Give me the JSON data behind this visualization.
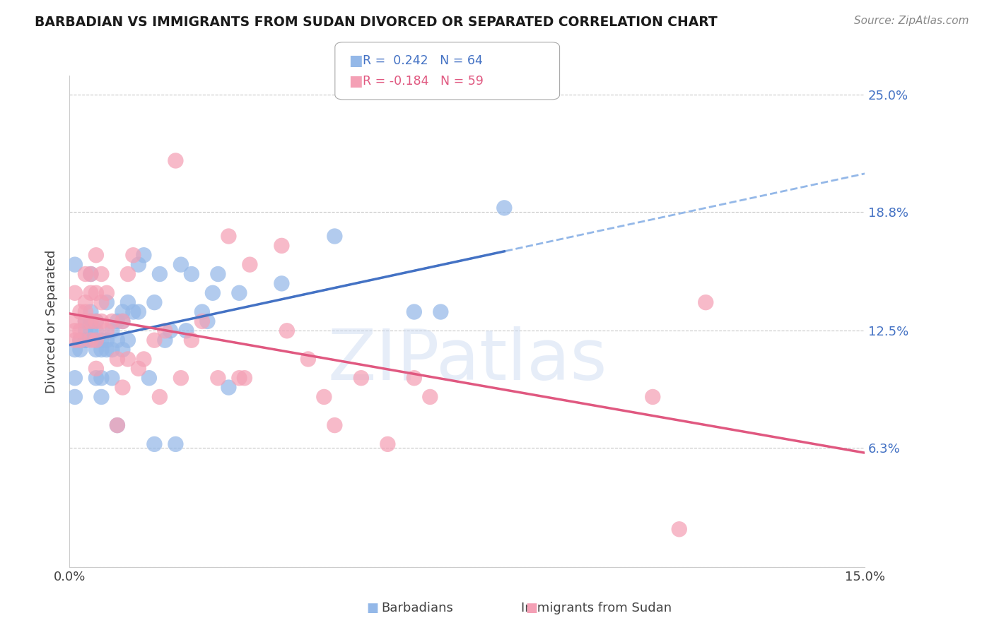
{
  "title": "BARBADIAN VS IMMIGRANTS FROM SUDAN DIVORCED OR SEPARATED CORRELATION CHART",
  "source": "Source: ZipAtlas.com",
  "ylabel": "Divorced or Separated",
  "xlim": [
    0.0,
    0.15
  ],
  "ylim": [
    0.0,
    0.26
  ],
  "ytick_values": [
    0.0,
    0.063,
    0.125,
    0.188,
    0.25
  ],
  "ytick_labels": [
    "",
    "6.3%",
    "12.5%",
    "18.8%",
    "25.0%"
  ],
  "grid_color": "#c8c8c8",
  "background_color": "#ffffff",
  "barbadian_color": "#94b8e8",
  "sudan_color": "#f4a0b5",
  "barbadian_R": 0.242,
  "barbadian_N": 64,
  "sudan_R": -0.184,
  "sudan_N": 59,
  "trend_blue_solid_color": "#4472c4",
  "trend_blue_dash_color": "#94b8e8",
  "trend_pink_color": "#e05880",
  "watermark": "ZIPatlas",
  "barbadian_x": [
    0.001,
    0.001,
    0.001,
    0.001,
    0.002,
    0.002,
    0.003,
    0.003,
    0.003,
    0.003,
    0.003,
    0.004,
    0.004,
    0.004,
    0.004,
    0.004,
    0.005,
    0.005,
    0.005,
    0.005,
    0.005,
    0.006,
    0.006,
    0.006,
    0.006,
    0.007,
    0.007,
    0.007,
    0.008,
    0.008,
    0.008,
    0.009,
    0.009,
    0.009,
    0.01,
    0.01,
    0.01,
    0.011,
    0.011,
    0.012,
    0.013,
    0.013,
    0.014,
    0.015,
    0.016,
    0.016,
    0.017,
    0.018,
    0.019,
    0.02,
    0.021,
    0.022,
    0.023,
    0.025,
    0.026,
    0.027,
    0.028,
    0.03,
    0.032,
    0.04,
    0.05,
    0.065,
    0.07,
    0.082
  ],
  "barbadian_y": [
    0.09,
    0.1,
    0.115,
    0.16,
    0.115,
    0.12,
    0.12,
    0.12,
    0.12,
    0.125,
    0.13,
    0.125,
    0.13,
    0.13,
    0.135,
    0.155,
    0.1,
    0.115,
    0.12,
    0.125,
    0.13,
    0.09,
    0.1,
    0.115,
    0.12,
    0.115,
    0.12,
    0.14,
    0.1,
    0.115,
    0.125,
    0.075,
    0.12,
    0.13,
    0.115,
    0.13,
    0.135,
    0.12,
    0.14,
    0.135,
    0.135,
    0.16,
    0.165,
    0.1,
    0.14,
    0.065,
    0.155,
    0.12,
    0.125,
    0.065,
    0.16,
    0.125,
    0.155,
    0.135,
    0.13,
    0.145,
    0.155,
    0.095,
    0.145,
    0.15,
    0.175,
    0.135,
    0.135,
    0.19
  ],
  "sudan_x": [
    0.001,
    0.001,
    0.001,
    0.001,
    0.002,
    0.002,
    0.002,
    0.003,
    0.003,
    0.003,
    0.003,
    0.004,
    0.004,
    0.004,
    0.004,
    0.005,
    0.005,
    0.005,
    0.005,
    0.005,
    0.006,
    0.006,
    0.006,
    0.007,
    0.007,
    0.008,
    0.009,
    0.009,
    0.01,
    0.01,
    0.011,
    0.011,
    0.012,
    0.013,
    0.014,
    0.016,
    0.017,
    0.018,
    0.02,
    0.021,
    0.023,
    0.025,
    0.028,
    0.03,
    0.032,
    0.033,
    0.034,
    0.04,
    0.041,
    0.045,
    0.048,
    0.05,
    0.055,
    0.06,
    0.065,
    0.068,
    0.11,
    0.115,
    0.12
  ],
  "sudan_y": [
    0.12,
    0.125,
    0.13,
    0.145,
    0.12,
    0.125,
    0.135,
    0.13,
    0.135,
    0.14,
    0.155,
    0.12,
    0.13,
    0.145,
    0.155,
    0.105,
    0.12,
    0.13,
    0.145,
    0.165,
    0.13,
    0.14,
    0.155,
    0.125,
    0.145,
    0.13,
    0.075,
    0.11,
    0.095,
    0.13,
    0.11,
    0.155,
    0.165,
    0.105,
    0.11,
    0.12,
    0.09,
    0.125,
    0.215,
    0.1,
    0.12,
    0.13,
    0.1,
    0.175,
    0.1,
    0.1,
    0.16,
    0.17,
    0.125,
    0.11,
    0.09,
    0.075,
    0.1,
    0.065,
    0.1,
    0.09,
    0.09,
    0.02,
    0.14
  ]
}
